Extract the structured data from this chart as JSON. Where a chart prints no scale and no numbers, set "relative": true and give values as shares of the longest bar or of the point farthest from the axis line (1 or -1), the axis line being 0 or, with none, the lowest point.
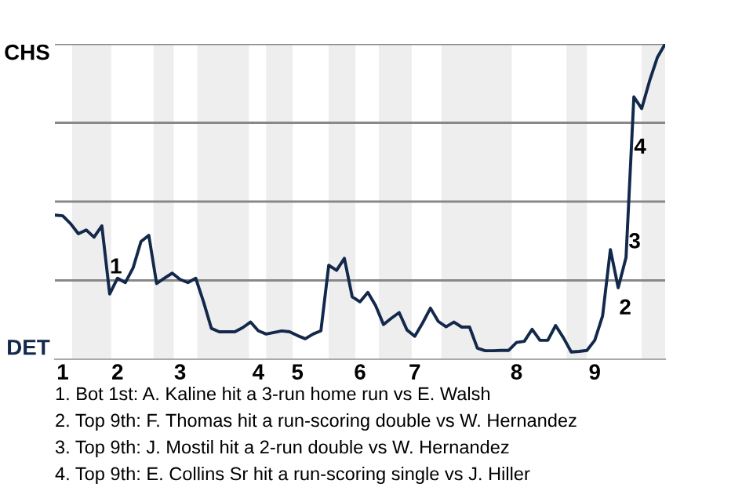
{
  "chart_data": {
    "type": "line",
    "relative": true,
    "categories": [
      null,
      "1",
      null,
      null,
      null,
      null,
      null,
      null,
      "2",
      null,
      null,
      null,
      null,
      null,
      null,
      null,
      "3",
      null,
      null,
      null,
      null,
      null,
      null,
      null,
      null,
      null,
      "4",
      null,
      null,
      null,
      null,
      "5",
      null,
      null,
      null,
      null,
      null,
      null,
      null,
      "6",
      null,
      null,
      null,
      null,
      null,
      null,
      "7",
      null,
      null,
      null,
      null,
      null,
      null,
      null,
      null,
      null,
      null,
      null,
      null,
      "8",
      null,
      null,
      null,
      null,
      null,
      null,
      null,
      null,
      null,
      "9",
      null,
      null,
      null,
      null,
      null,
      null,
      null,
      null,
      null
    ],
    "series": [
      {
        "values": [
          0.457,
          0.455,
          0.43,
          0.398,
          0.41,
          0.387,
          0.423,
          0.207,
          0.257,
          0.243,
          0.29,
          0.373,
          0.393,
          0.24,
          0.257,
          0.273,
          0.253,
          0.243,
          0.257,
          0.182,
          0.098,
          0.087,
          0.087,
          0.087,
          0.1,
          0.118,
          0.09,
          0.08,
          0.085,
          0.09,
          0.087,
          0.075,
          0.065,
          0.08,
          0.09,
          0.298,
          0.282,
          0.32,
          0.198,
          0.182,
          0.212,
          0.17,
          0.11,
          0.13,
          0.148,
          0.093,
          0.073,
          0.115,
          0.162,
          0.12,
          0.103,
          0.118,
          0.102,
          0.102,
          0.035,
          0.027,
          0.027,
          0.028,
          0.028,
          0.053,
          0.057,
          0.095,
          0.06,
          0.06,
          0.107,
          0.068,
          0.023,
          0.025,
          0.028,
          0.06,
          0.137,
          0.348,
          0.227,
          0.323,
          0.832,
          0.795,
          0.882,
          0.957,
          1
        ],
        "color": "#13294b"
      }
    ],
    "ref_lines": [
      {
        "axis": "y",
        "value": 0.25,
        "color": "#888888"
      },
      {
        "axis": "y",
        "value": 0.5,
        "color": "#888888"
      },
      {
        "axis": "y",
        "value": 0.75,
        "color": "#888888"
      },
      {
        "axis": "y",
        "value": 1,
        "color": "#888888"
      }
    ],
    "annotations": [
      "CHS",
      "DET",
      "1",
      "2",
      "3",
      "4",
      "1. Bot 1st: A. Kaline hit a 3-run home run vs E. Walsh",
      "2. Top 9th: F. Thomas hit a run-scoring double vs W. Hernandez",
      "3. Top 9th: J. Mostil hit a 2-run double vs W. Hernandez",
      "4. Top 9th: E. Collins Sr hit a run-scoring single vs J. Hiller"
    ]
  }
}
